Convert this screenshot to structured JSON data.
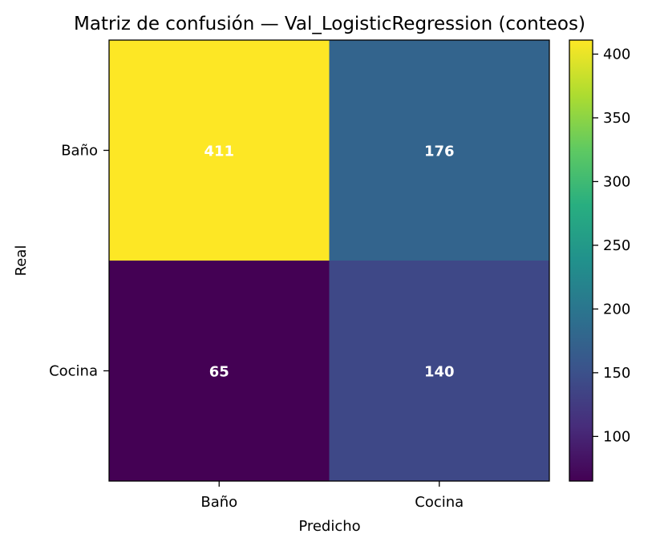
{
  "chart_data": {
    "type": "heatmap",
    "title": "Matriz de confusión — Val_LogisticRegression (conteos)",
    "xlabel": "Predicho",
    "ylabel": "Real",
    "x_categories": [
      "Baño",
      "Cocina"
    ],
    "y_categories": [
      "Baño",
      "Cocina"
    ],
    "values": [
      [
        411,
        176
      ],
      [
        65,
        140
      ]
    ],
    "colormap": "viridis",
    "colorbar": {
      "min": 65,
      "max": 411,
      "ticks": [
        100,
        150,
        200,
        250,
        300,
        350,
        400
      ]
    },
    "annotation_color": "#ffffff",
    "grid": false
  }
}
